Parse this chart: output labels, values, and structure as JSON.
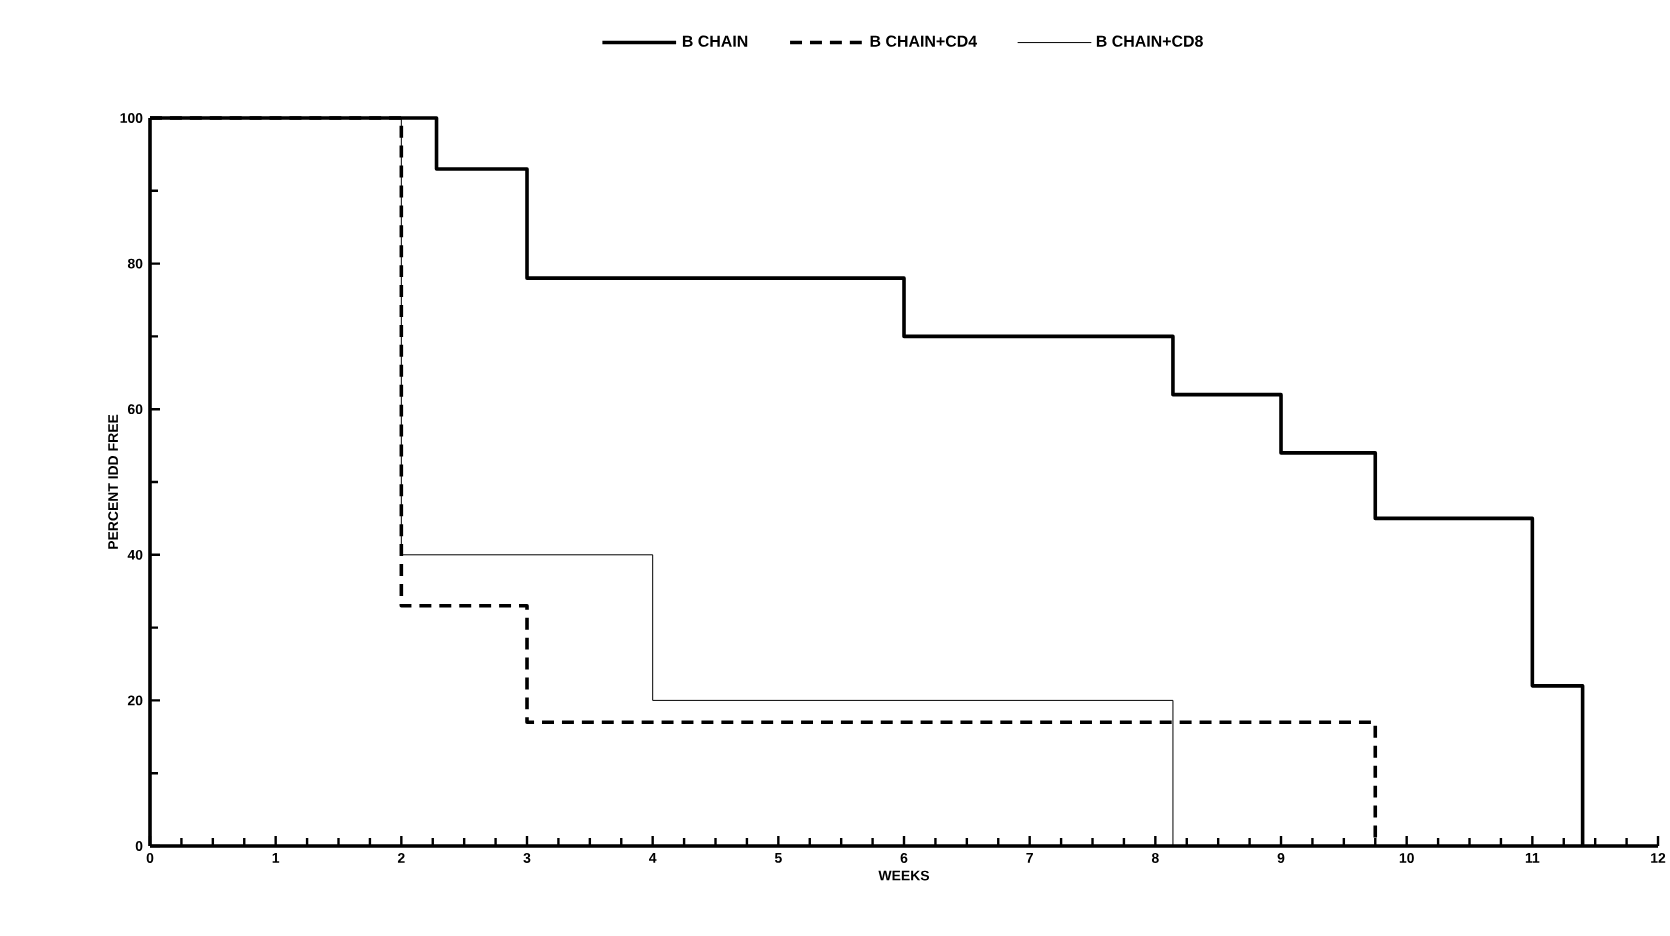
{
  "chart_data": {
    "type": "step",
    "xlabel": "WEEKS",
    "ylabel": "PERCENT IDD FREE",
    "xlim": [
      0,
      12
    ],
    "ylim": [
      0,
      100
    ],
    "xticks": [
      0,
      1,
      2,
      3,
      4,
      5,
      6,
      7,
      8,
      9,
      10,
      11,
      12
    ],
    "yticks": [
      0,
      20,
      40,
      60,
      80,
      100
    ],
    "grid": false,
    "legend": "top",
    "series": [
      {
        "name": "B CHAIN",
        "color": "#000000",
        "line_style": "solid",
        "x": [
          0,
          2.28,
          3,
          6,
          8.14,
          9,
          9.75,
          11,
          11.4
        ],
        "values": [
          100,
          93,
          78,
          70,
          62,
          54,
          45,
          22,
          0
        ]
      },
      {
        "name": "B CHAIN+CD4",
        "color": "#000000",
        "line_style": "dashed",
        "x": [
          0,
          2,
          3,
          9.75
        ],
        "values": [
          100,
          33,
          17,
          0
        ]
      },
      {
        "name": "B CHAIN+CD8",
        "color": "#000000",
        "line_style": "solid",
        "x": [
          0,
          2,
          4,
          8.14
        ],
        "values": [
          100,
          40,
          20,
          0
        ]
      }
    ]
  }
}
